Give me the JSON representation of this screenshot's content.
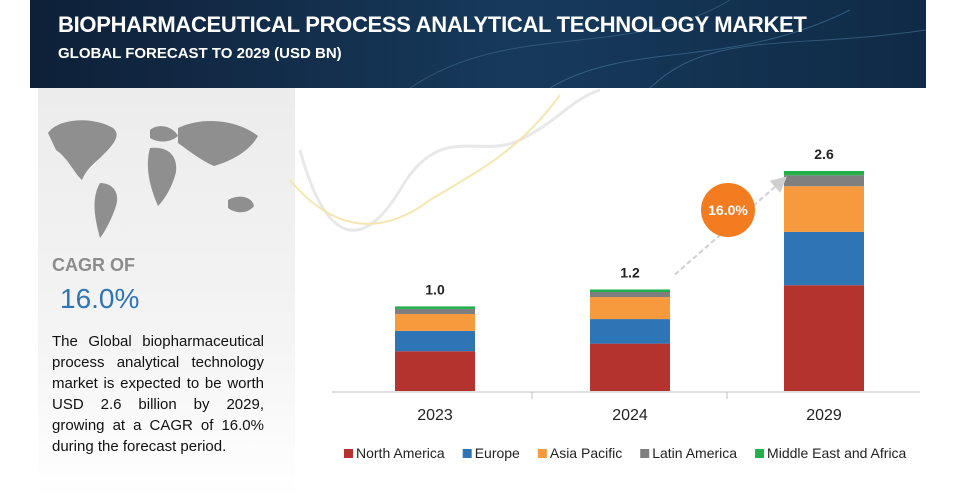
{
  "chart_data": {
    "type": "stacked-bar",
    "title": "BIOPHARMACEUTICAL PROCESS ANALYTICAL TECHNOLOGY MARKET",
    "subtitle": "GLOBAL FORECAST TO 2029 (USD BN)",
    "cagr_caption": "CAGR OF",
    "cagr": 16.0,
    "cagr_label": "16.0%",
    "description": "The Global biopharmaceutical process analytical technology market is expected to be worth USD 2.6 billion by 2029, growing at a CAGR of 16.0% during the forecast period.",
    "categories": [
      "2023",
      "2024",
      "2029"
    ],
    "totals": [
      1.0,
      1.2,
      2.6
    ],
    "total_labels": [
      "1.0",
      "1.2",
      "2.6"
    ],
    "series": [
      {
        "name": "North America",
        "color": "#b5332e",
        "values": [
          0.47,
          0.56,
          1.25
        ]
      },
      {
        "name": "Europe",
        "color": "#2e75b6",
        "values": [
          0.24,
          0.29,
          0.63
        ]
      },
      {
        "name": "Asia Pacific",
        "color": "#f79a3e",
        "values": [
          0.2,
          0.26,
          0.54
        ]
      },
      {
        "name": "Latin America",
        "color": "#7f7f7f",
        "values": [
          0.06,
          0.06,
          0.13
        ]
      },
      {
        "name": "Middle East and Africa",
        "color": "#21b04b",
        "values": [
          0.03,
          0.03,
          0.05
        ]
      }
    ],
    "legend": "bottom"
  }
}
